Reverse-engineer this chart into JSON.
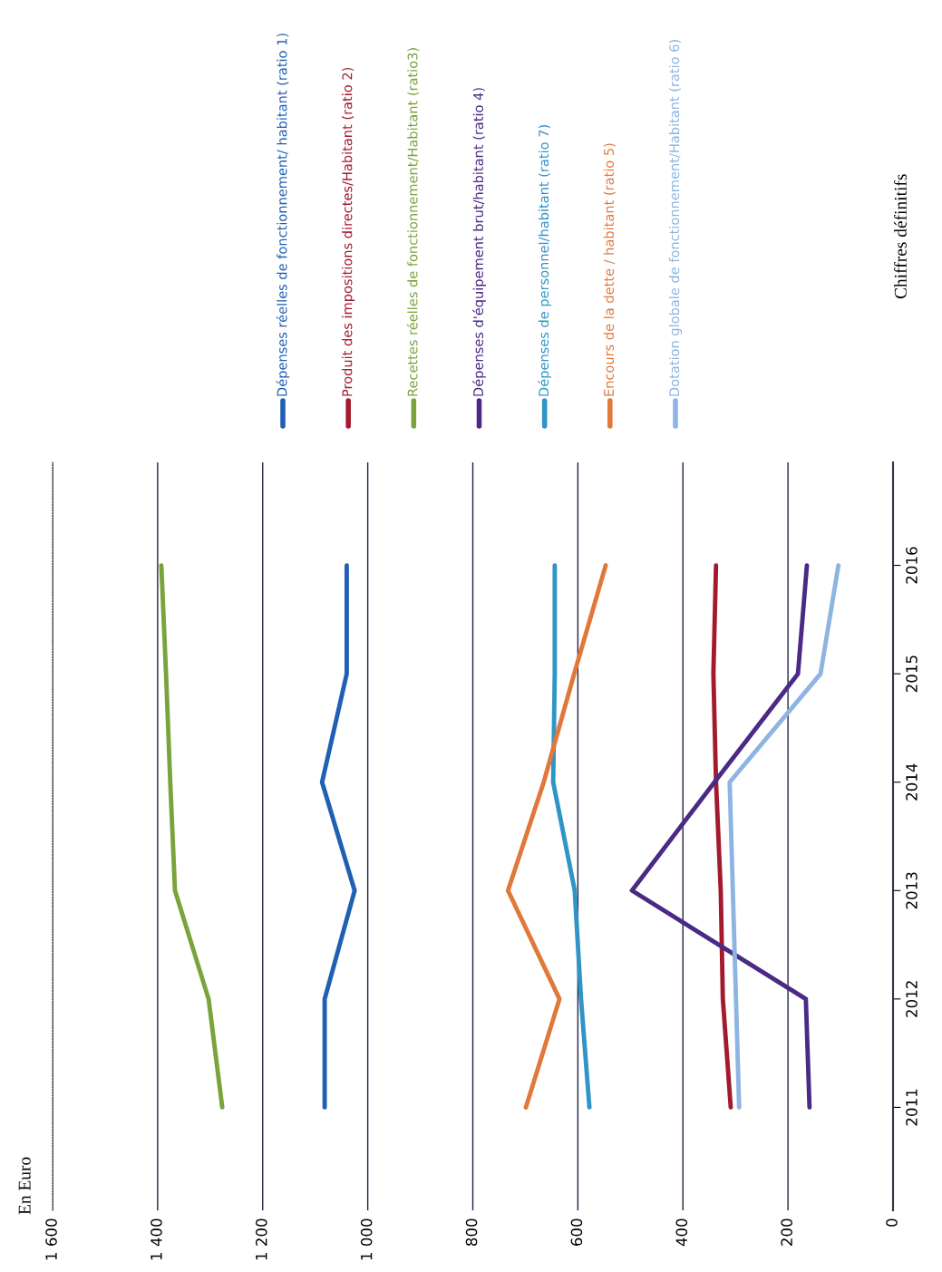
{
  "chart_data": {
    "type": "line",
    "orientation": "horizontal",
    "title": "En Euro",
    "categories": [
      "2016",
      "2015",
      "2014",
      "2013",
      "2012",
      "2011"
    ],
    "series": [
      {
        "name": "Dépenses réelles de fonctionnement/ habitant (ratio 1)",
        "color": "#1f5fb4",
        "values": [
          1040,
          1040,
          1087,
          1025,
          1082,
          1082
        ]
      },
      {
        "name": "Produit des impositions directes/Habitant (ratio 2)",
        "color": "#a3192e",
        "values": [
          337,
          342,
          337,
          328,
          324,
          309
        ]
      },
      {
        "name": "Recettes réelles de fonctionnement/Habitant (ratio3)",
        "color": "#7aa33c",
        "values": [
          1393,
          1384,
          1376,
          1367,
          1303,
          1277
        ]
      },
      {
        "name": "Dépenses d'équipement brut/habitant (ratio 4)",
        "color": "#4b2a86",
        "values": [
          164,
          181,
          340,
          497,
          166,
          159
        ]
      },
      {
        "name": "Dépenses de personnel/habitant (ratio 7)",
        "color": "#2f95c6",
        "values": [
          644,
          644,
          647,
          606,
          594,
          578
        ]
      },
      {
        "name": "Encours de la dette / habitant (ratio 5)",
        "color": "#e0783a",
        "values": [
          547,
          607,
          665,
          733,
          635,
          699
        ]
      },
      {
        "name": "Dotation globale de fonctionnement/Habitant (ratio 6)",
        "color": "#8db4e2",
        "values": [
          104,
          138,
          311,
          305,
          299,
          293
        ]
      }
    ],
    "xlim": [
      1600,
      0
    ],
    "xticks": [
      {
        "value": 1600,
        "label": "1 600"
      },
      {
        "value": 1400,
        "label": "1 400"
      },
      {
        "value": 1200,
        "label": "1 200"
      },
      {
        "value": 1000,
        "label": "1 000"
      },
      800,
      600,
      400,
      200,
      0
    ],
    "grid": "x",
    "legend": "right",
    "marker": "none",
    "line_style": "solid",
    "annotations": [
      "Chiffres définitifs"
    ]
  }
}
